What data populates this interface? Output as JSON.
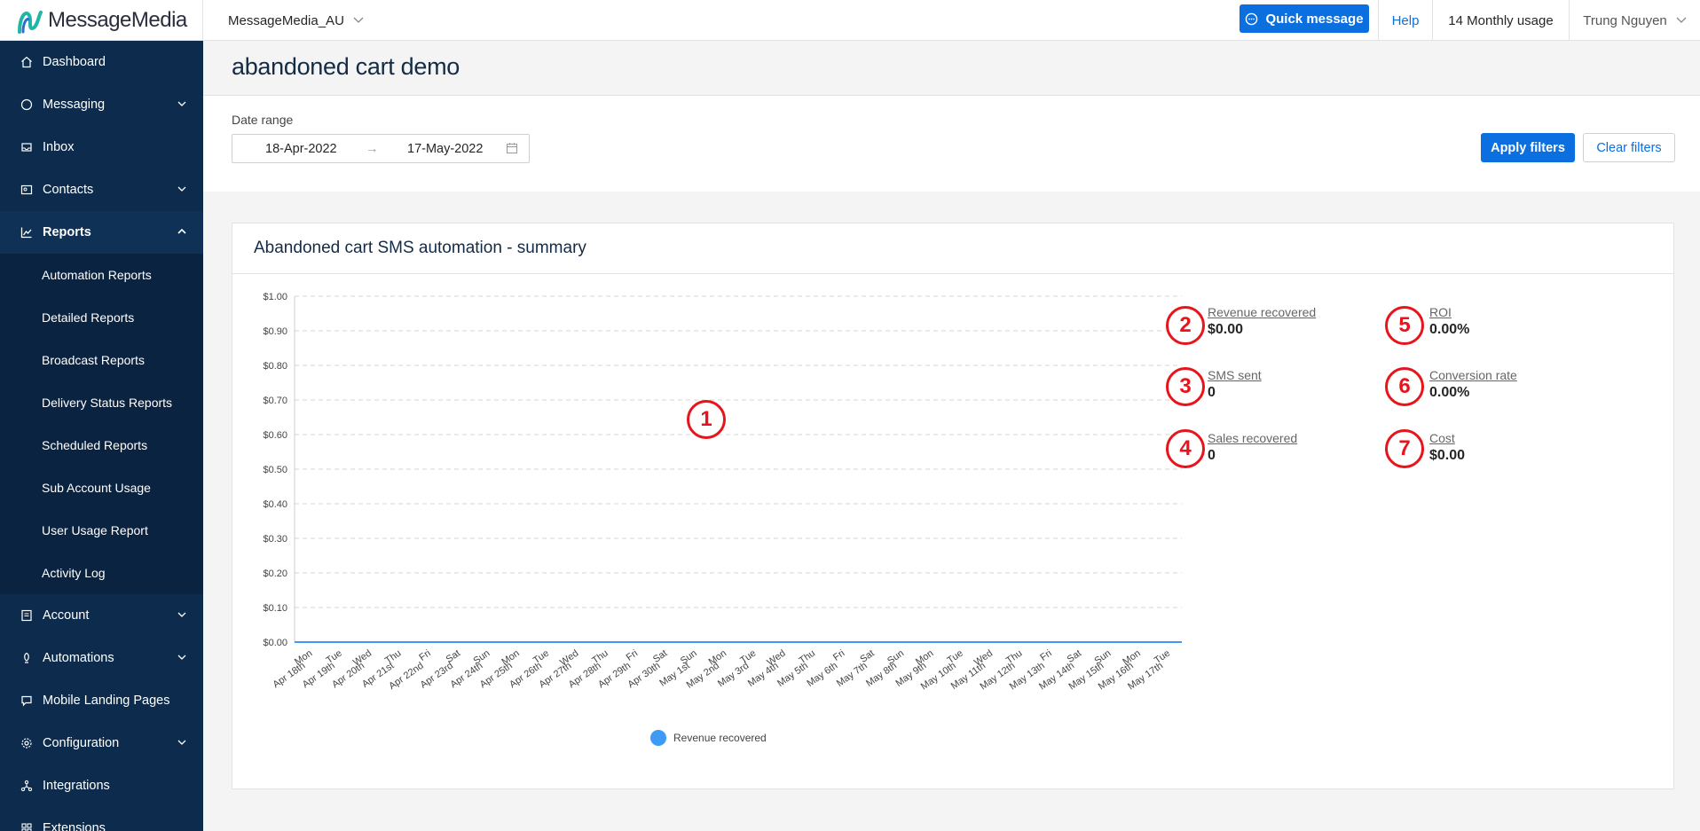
{
  "topbar": {
    "logo_text": "MessageMedia",
    "account_name": "MessageMedia_AU",
    "quick_message_label": "Quick message",
    "help_label": "Help",
    "usage_label": "14 Monthly usage",
    "user_name": "Trung Nguyen"
  },
  "sidebar": {
    "items": [
      {
        "label": "Dashboard",
        "icon": "home-icon"
      },
      {
        "label": "Messaging",
        "icon": "chat-icon"
      },
      {
        "label": "Inbox",
        "icon": "inbox-icon"
      },
      {
        "label": "Contacts",
        "icon": "contacts-icon"
      },
      {
        "label": "Reports",
        "icon": "chart-icon"
      },
      {
        "label": "Account",
        "icon": "account-icon"
      },
      {
        "label": "Automations",
        "icon": "automation-icon"
      },
      {
        "label": "Mobile Landing Pages",
        "icon": "landing-page-icon"
      },
      {
        "label": "Configuration",
        "icon": "gear-icon"
      },
      {
        "label": "Integrations",
        "icon": "integrations-icon"
      },
      {
        "label": "Extensions",
        "icon": "extensions-icon"
      }
    ],
    "reports_sub": [
      "Automation Reports",
      "Detailed Reports",
      "Broadcast Reports",
      "Delivery Status Reports",
      "Scheduled Reports",
      "Sub Account Usage",
      "User Usage Report",
      "Activity Log"
    ]
  },
  "page": {
    "title": "abandoned cart demo",
    "date_range_label": "Date range",
    "date_from": "18-Apr-2022",
    "date_to": "17-May-2022",
    "date_arrow": "→",
    "apply_label": "Apply filters",
    "clear_label": "Clear filters"
  },
  "card": {
    "title": "Abandoned cart SMS automation - summary",
    "metrics": [
      {
        "badge": "2",
        "label": "Revenue recovered",
        "value": "$0.00"
      },
      {
        "badge": "3",
        "label": "SMS sent",
        "value": "0"
      },
      {
        "badge": "4",
        "label": "Sales recovered",
        "value": "0"
      },
      {
        "badge": "5",
        "label": "ROI",
        "value": "0.00%"
      },
      {
        "badge": "6",
        "label": "Conversion rate",
        "value": "0.00%"
      },
      {
        "badge": "7",
        "label": "Cost",
        "value": "$0.00"
      }
    ],
    "chart_badge": "1"
  },
  "chart_data": {
    "type": "line",
    "title": "",
    "xlabel": "",
    "ylabel": "",
    "ylim": [
      0,
      1
    ],
    "y_ticks": [
      "$0.00",
      "$0.10",
      "$0.20",
      "$0.30",
      "$0.40",
      "$0.50",
      "$0.60",
      "$0.70",
      "$0.80",
      "$0.90",
      "$1.00"
    ],
    "categories": [
      [
        "Mon",
        "Apr 18th"
      ],
      [
        "Tue",
        "Apr 19th"
      ],
      [
        "Wed",
        "Apr 20th"
      ],
      [
        "Thu",
        "Apr 21st"
      ],
      [
        "Fri",
        "Apr 22nd"
      ],
      [
        "Sat",
        "Apr 23rd"
      ],
      [
        "Sun",
        "Apr 24th"
      ],
      [
        "Mon",
        "Apr 25th"
      ],
      [
        "Tue",
        "Apr 26th"
      ],
      [
        "Wed",
        "Apr 27th"
      ],
      [
        "Thu",
        "Apr 28th"
      ],
      [
        "Fri",
        "Apr 29th"
      ],
      [
        "Sat",
        "Apr 30th"
      ],
      [
        "Sun",
        "May 1st"
      ],
      [
        "Mon",
        "May 2nd"
      ],
      [
        "Tue",
        "May 3rd"
      ],
      [
        "Wed",
        "May 4th"
      ],
      [
        "Thu",
        "May 5th"
      ],
      [
        "Fri",
        "May 6th"
      ],
      [
        "Sat",
        "May 7th"
      ],
      [
        "Sun",
        "May 8th"
      ],
      [
        "Mon",
        "May 9th"
      ],
      [
        "Tue",
        "May 10th"
      ],
      [
        "Wed",
        "May 11th"
      ],
      [
        "Thu",
        "May 12th"
      ],
      [
        "Fri",
        "May 13th"
      ],
      [
        "Sat",
        "May 14th"
      ],
      [
        "Sun",
        "May 15th"
      ],
      [
        "Mon",
        "May 16th"
      ],
      [
        "Tue",
        "May 17th"
      ]
    ],
    "series": [
      {
        "name": "Revenue recovered",
        "color": "#3d9bf5",
        "values": [
          0,
          0,
          0,
          0,
          0,
          0,
          0,
          0,
          0,
          0,
          0,
          0,
          0,
          0,
          0,
          0,
          0,
          0,
          0,
          0,
          0,
          0,
          0,
          0,
          0,
          0,
          0,
          0,
          0,
          0
        ]
      }
    ],
    "grid": true,
    "legend": "bottom-center"
  }
}
